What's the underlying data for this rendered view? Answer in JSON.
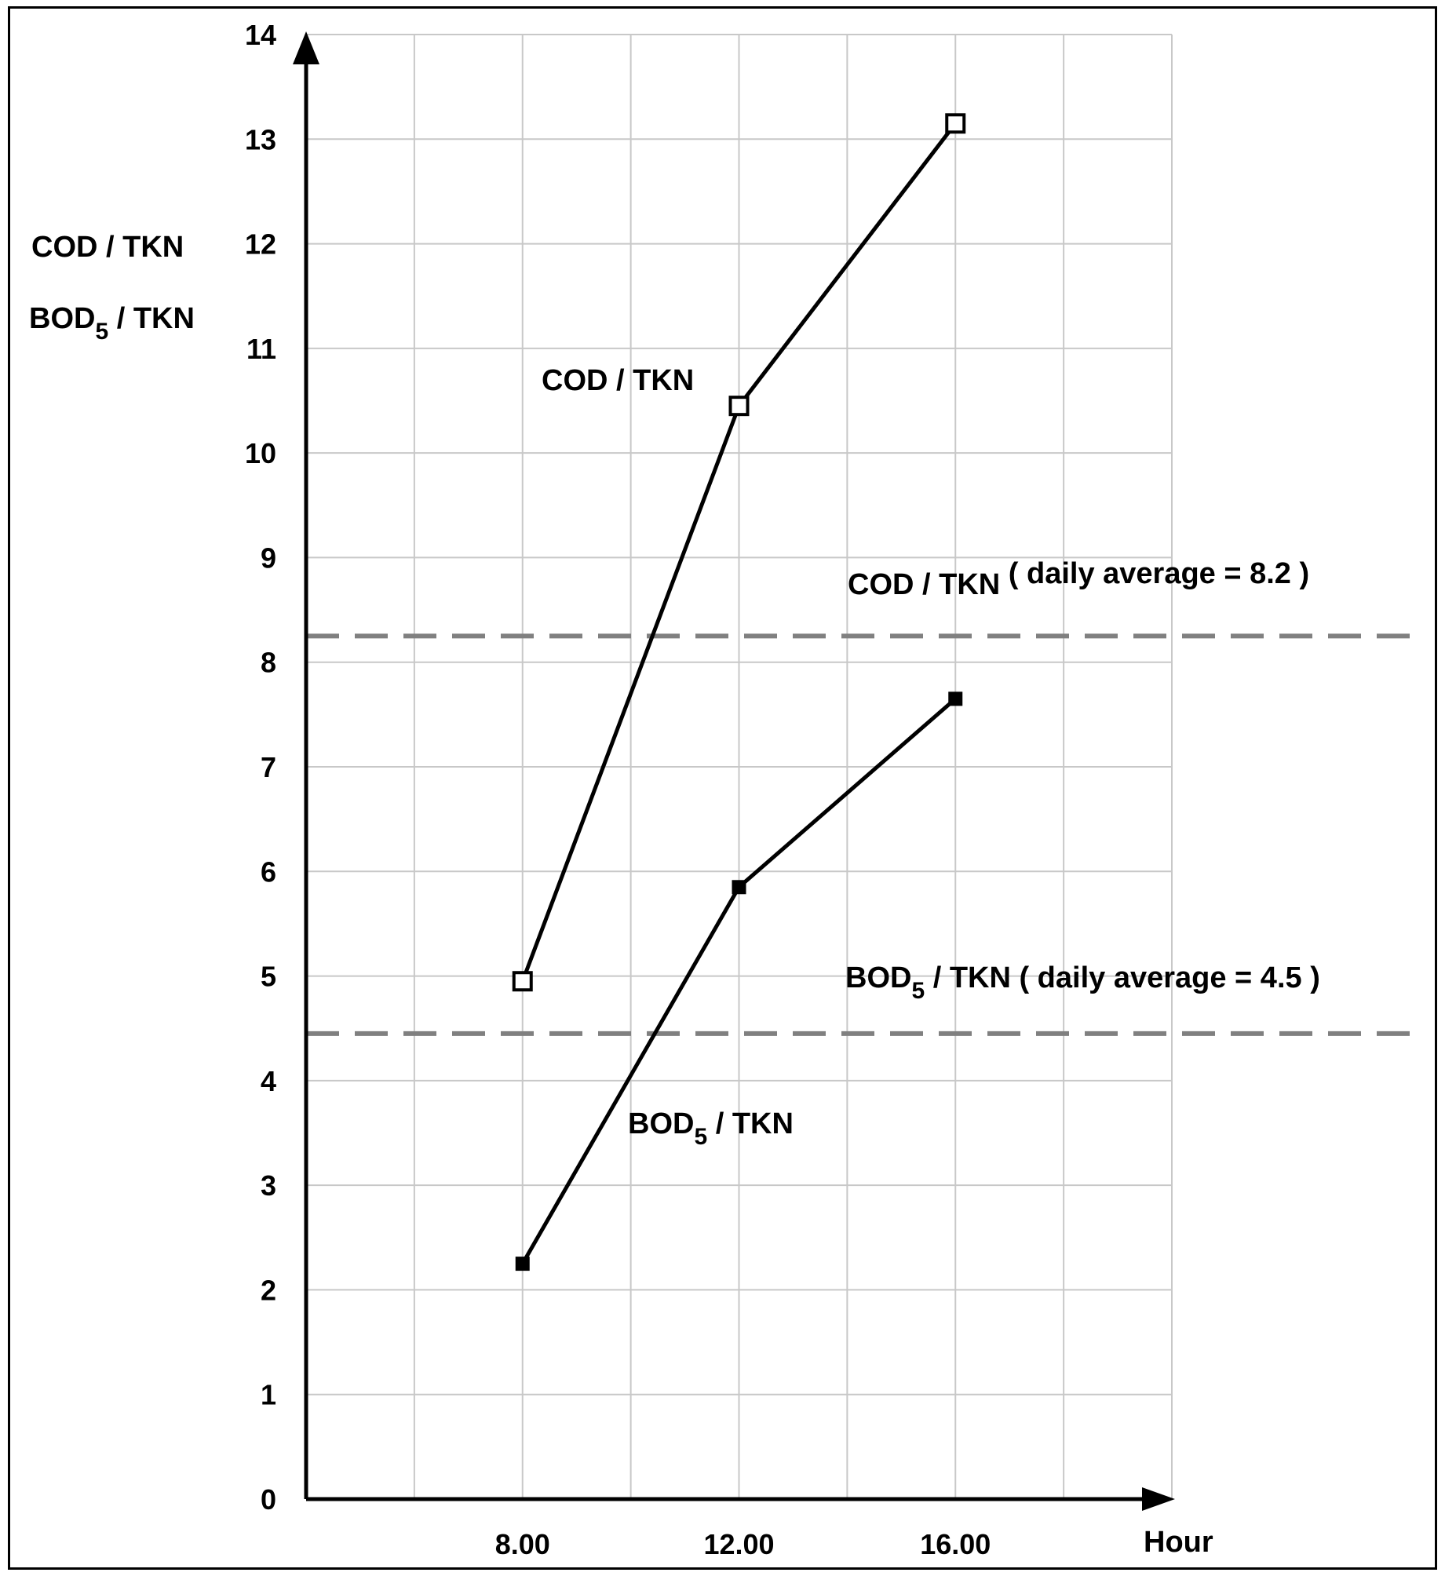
{
  "chart_data": {
    "type": "line",
    "x": [
      8,
      12,
      16
    ],
    "xtick_labels": [
      "8.00",
      "12.00",
      "16.00"
    ],
    "xlabel": "Hour",
    "ylabel_line1": "COD / TKN",
    "ylabel_line2_main": "BOD",
    "ylabel_line2_sub": "5",
    "ylabel_line2_rest": " / TKN",
    "xlim": [
      4,
      20
    ],
    "ylim": [
      0,
      14
    ],
    "yticks": [
      0,
      1,
      2,
      3,
      4,
      5,
      6,
      7,
      8,
      9,
      10,
      11,
      12,
      13,
      14
    ],
    "grid": true,
    "series": [
      {
        "label_main": "COD / TKN",
        "label_sub": "",
        "label_rest": "",
        "marker": "open-square",
        "color": "#000000",
        "values": [
          4.95,
          10.45,
          13.15
        ]
      },
      {
        "label_main": "BOD",
        "label_sub": "5",
        "label_rest": " / TKN",
        "marker": "filled-square",
        "color": "#000000",
        "values": [
          2.25,
          5.85,
          7.65
        ]
      }
    ],
    "reference_lines": [
      {
        "value": 8.25,
        "label_main": "COD / TKN",
        "label_sub": "",
        "label_rest": "   ( daily average = 8.2 )",
        "color": "#808080",
        "style": "dashed"
      },
      {
        "value": 4.45,
        "label_main": "BOD",
        "label_sub": "5",
        "label_rest": " / TKN  ( daily average = 4.5 )",
        "color": "#808080",
        "style": "dashed"
      }
    ]
  }
}
